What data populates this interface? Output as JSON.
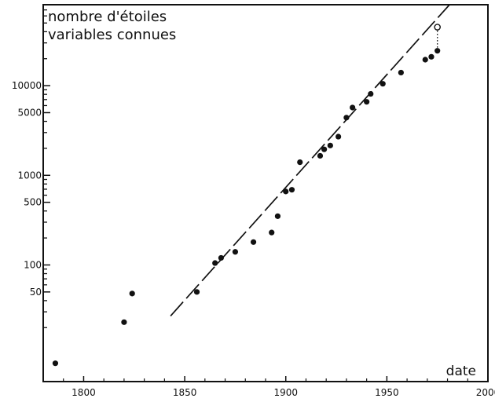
{
  "chart_data": {
    "type": "scatter",
    "title_lines": [
      "nombre d'étoiles",
      "variables connues"
    ],
    "xlabel": "date",
    "ylabel": "",
    "yscale": "log",
    "xlim": [
      1780,
      2000
    ],
    "ylim": [
      5,
      80000
    ],
    "x_ticks": [
      1800,
      1850,
      1900,
      1950,
      2000
    ],
    "y_ticks": [
      {
        "value": 50,
        "label": "50"
      },
      {
        "value": 100,
        "label": "100"
      },
      {
        "value": 500,
        "label": "500"
      },
      {
        "value": 1000,
        "label": "1000"
      },
      {
        "value": 5000,
        "label": "5000"
      },
      {
        "value": 10000,
        "label": "10000"
      }
    ],
    "y_minor_ticks": [
      20,
      30,
      40,
      60,
      70,
      80,
      90,
      200,
      300,
      400,
      600,
      700,
      800,
      900,
      2000,
      3000,
      4000,
      6000,
      7000,
      8000,
      9000,
      20000,
      30000,
      40000,
      50000,
      60000,
      70000,
      80000
    ],
    "series": [
      {
        "marker": "filled",
        "points": [
          {
            "x": 1786,
            "y": 8
          },
          {
            "x": 1820,
            "y": 23
          },
          {
            "x": 1824,
            "y": 48
          },
          {
            "x": 1856,
            "y": 50
          },
          {
            "x": 1865,
            "y": 105
          },
          {
            "x": 1868,
            "y": 120
          },
          {
            "x": 1875,
            "y": 140
          },
          {
            "x": 1884,
            "y": 180
          },
          {
            "x": 1893,
            "y": 230
          },
          {
            "x": 1896,
            "y": 350
          },
          {
            "x": 1900,
            "y": 660
          },
          {
            "x": 1903,
            "y": 690
          },
          {
            "x": 1907,
            "y": 1400
          },
          {
            "x": 1917,
            "y": 1650
          },
          {
            "x": 1919,
            "y": 1950
          },
          {
            "x": 1922,
            "y": 2150
          },
          {
            "x": 1926,
            "y": 2700
          },
          {
            "x": 1930,
            "y": 4400
          },
          {
            "x": 1933,
            "y": 5700
          },
          {
            "x": 1940,
            "y": 6600
          },
          {
            "x": 1942,
            "y": 8100
          },
          {
            "x": 1948,
            "y": 10500
          },
          {
            "x": 1957,
            "y": 14000
          },
          {
            "x": 1969,
            "y": 19500
          },
          {
            "x": 1972,
            "y": 21000
          },
          {
            "x": 1975,
            "y": 24500
          }
        ]
      },
      {
        "marker": "open",
        "points": [
          {
            "x": 1975,
            "y": 45000
          }
        ]
      }
    ],
    "connector": {
      "x": 1975,
      "y_from": 24500,
      "y_to": 45000,
      "style": "dotted"
    },
    "trend_line": {
      "style": "dashed",
      "x": [
        1843,
        1981
      ],
      "y": [
        27,
        80000
      ]
    },
    "grid": false
  }
}
